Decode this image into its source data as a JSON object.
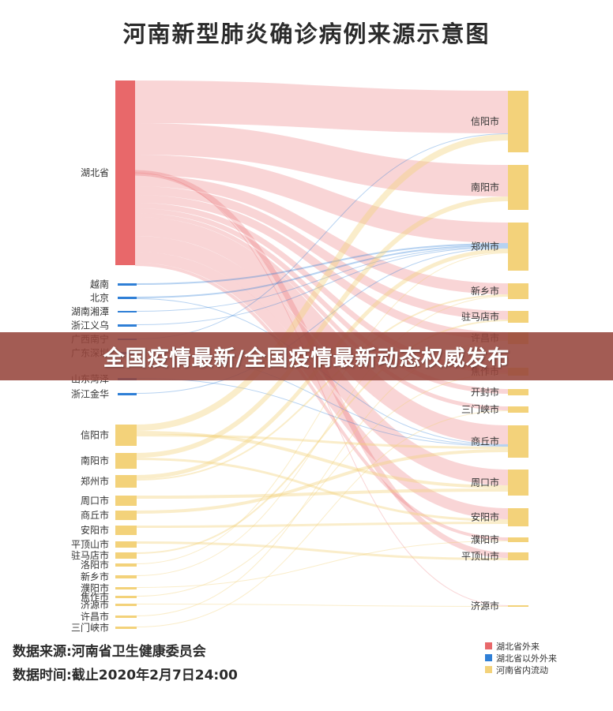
{
  "title": "河南新型肺炎确诊病例来源示意图",
  "banner": "全国疫情最新/全国疫情最新动态权威发布",
  "footer": {
    "source": "数据来源:河南省卫生健康委员会",
    "time": "数据时间:截止2020年2月7日24:00"
  },
  "colors": {
    "hubei": "#e8686a",
    "outside_hubei": "#2f7fd6",
    "henan_internal": "#f3d27a"
  },
  "legend": [
    {
      "name": "湖北省外来",
      "color": "#e8686a"
    },
    {
      "name": "湖北省以外外来",
      "color": "#2f7fd6"
    },
    {
      "name": "河南省内流动",
      "color": "#f3d27a"
    }
  ],
  "chart_data": {
    "type": "sankey",
    "title": "河南新型肺炎确诊病例来源示意图",
    "sources": [
      {
        "name": "湖北省",
        "group": "hubei"
      },
      {
        "name": "越南",
        "group": "outside"
      },
      {
        "name": "北京",
        "group": "outside"
      },
      {
        "name": "湖南湘潭",
        "group": "outside"
      },
      {
        "name": "浙江义乌",
        "group": "outside"
      },
      {
        "name": "广西南宁",
        "group": "outside"
      },
      {
        "name": "广东深圳",
        "group": "outside"
      },
      {
        "name": "山东菏泽",
        "group": "outside"
      },
      {
        "name": "浙江金华",
        "group": "outside"
      },
      {
        "name": "信阳市",
        "group": "internal"
      },
      {
        "name": "南阳市",
        "group": "internal"
      },
      {
        "name": "郑州市",
        "group": "internal"
      },
      {
        "name": "周口市",
        "group": "internal"
      },
      {
        "name": "商丘市",
        "group": "internal"
      },
      {
        "name": "安阳市",
        "group": "internal"
      },
      {
        "name": "平顶山市",
        "group": "internal"
      },
      {
        "name": "驻马店市",
        "group": "internal"
      },
      {
        "name": "洛阳市",
        "group": "internal"
      },
      {
        "name": "新乡市",
        "group": "internal"
      },
      {
        "name": "濮阳市",
        "group": "internal"
      },
      {
        "name": "焦作市",
        "group": "internal"
      },
      {
        "name": "济源市",
        "group": "internal"
      },
      {
        "name": "许昌市",
        "group": "internal"
      },
      {
        "name": "三门峡市",
        "group": "internal"
      }
    ],
    "targets": [
      "信阳市",
      "南阳市",
      "郑州市",
      "新乡市",
      "驻马店市",
      "许昌市",
      "焦作市",
      "开封市",
      "三门峡市",
      "商丘市",
      "周口市",
      "安阳市",
      "濮阳市",
      "平顶山市",
      "济源市"
    ]
  }
}
